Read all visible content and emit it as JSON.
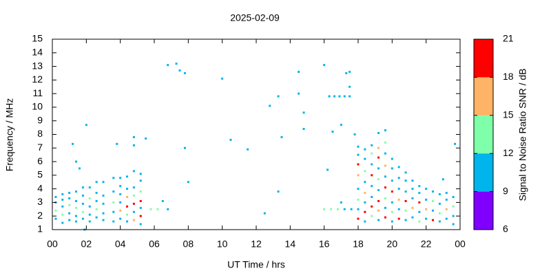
{
  "chart_data": {
    "type": "scatter",
    "title": "2025-02-09",
    "xlabel": "UT Time / hrs",
    "ylabel": "Frequency / MHz",
    "xlim": [
      0,
      24
    ],
    "xticks": [
      {
        "value": 0,
        "label": "00"
      },
      {
        "value": 2,
        "label": "02"
      },
      {
        "value": 4,
        "label": "04"
      },
      {
        "value": 6,
        "label": "06"
      },
      {
        "value": 8,
        "label": "08"
      },
      10,
      12,
      14,
      16,
      18,
      20,
      22,
      {
        "value": 24,
        "label": "00"
      }
    ],
    "ylim": [
      1,
      15
    ],
    "yticks": [
      1,
      2,
      3,
      4,
      5,
      6,
      7,
      8,
      9,
      10,
      11,
      12,
      13,
      14,
      15
    ],
    "colorbar": {
      "label": "Signal to Noise Ratio SNR / dB",
      "zlim": [
        6,
        21
      ],
      "zticks": [
        6,
        9,
        12,
        15,
        18,
        21
      ],
      "colors": [
        "#8000ff",
        "#00b4ec",
        "#80ffaa",
        "#ffb366",
        "#ff0000"
      ]
    },
    "points": [
      [
        0.2,
        1.8,
        10
      ],
      [
        0.2,
        2.4,
        13
      ],
      [
        0.2,
        3.0,
        10
      ],
      [
        0.2,
        3.4,
        10
      ],
      [
        0.6,
        1.5,
        10
      ],
      [
        0.6,
        2.1,
        13
      ],
      [
        0.6,
        2.7,
        10
      ],
      [
        0.6,
        3.2,
        11
      ],
      [
        0.6,
        3.6,
        10
      ],
      [
        1.0,
        1.7,
        10
      ],
      [
        1.0,
        2.2,
        11
      ],
      [
        1.0,
        2.8,
        14
      ],
      [
        1.0,
        3.3,
        10
      ],
      [
        1.0,
        3.7,
        10
      ],
      [
        1.4,
        1.6,
        10
      ],
      [
        1.4,
        2.0,
        10
      ],
      [
        1.4,
        2.6,
        13
      ],
      [
        1.4,
        3.1,
        10
      ],
      [
        1.4,
        3.8,
        10
      ],
      [
        1.4,
        6.0,
        10
      ],
      [
        1.8,
        1.8,
        10
      ],
      [
        1.8,
        2.3,
        14
      ],
      [
        1.8,
        2.9,
        10
      ],
      [
        1.8,
        3.5,
        10
      ],
      [
        1.8,
        4.1,
        10
      ],
      [
        2.2,
        1.6,
        11
      ],
      [
        2.2,
        2.1,
        10
      ],
      [
        2.2,
        2.7,
        10
      ],
      [
        2.2,
        3.3,
        13
      ],
      [
        2.2,
        4.1,
        10
      ],
      [
        2.6,
        1.9,
        10
      ],
      [
        2.6,
        2.5,
        13
      ],
      [
        2.6,
        3.1,
        10
      ],
      [
        2.6,
        3.7,
        10
      ],
      [
        2.6,
        4.5,
        10
      ],
      [
        3.0,
        1.7,
        10
      ],
      [
        3.0,
        2.2,
        10
      ],
      [
        3.0,
        2.9,
        11
      ],
      [
        3.0,
        3.5,
        10
      ],
      [
        3.0,
        4.5,
        10
      ],
      [
        3.6,
        1.6,
        10
      ],
      [
        3.6,
        2.3,
        10
      ],
      [
        3.6,
        3.0,
        13
      ],
      [
        3.6,
        3.8,
        10
      ],
      [
        3.6,
        4.8,
        10
      ],
      [
        4.0,
        1.8,
        10
      ],
      [
        4.0,
        2.4,
        16
      ],
      [
        4.0,
        3.0,
        10
      ],
      [
        4.0,
        3.6,
        10
      ],
      [
        4.0,
        4.2,
        11
      ],
      [
        4.0,
        4.8,
        10
      ],
      [
        4.4,
        1.6,
        10
      ],
      [
        4.4,
        2.1,
        13
      ],
      [
        4.4,
        2.7,
        19
      ],
      [
        4.4,
        3.4,
        16
      ],
      [
        4.4,
        4.0,
        10
      ],
      [
        4.4,
        4.9,
        10
      ],
      [
        4.8,
        1.7,
        17
      ],
      [
        4.8,
        2.3,
        10
      ],
      [
        4.8,
        2.9,
        19
      ],
      [
        4.8,
        3.5,
        14
      ],
      [
        4.8,
        4.1,
        10
      ],
      [
        4.8,
        5.3,
        10
      ],
      [
        5.2,
        1.4,
        10
      ],
      [
        5.2,
        2.0,
        19
      ],
      [
        5.2,
        2.6,
        10
      ],
      [
        5.2,
        3.1,
        19
      ],
      [
        5.2,
        3.8,
        13
      ],
      [
        5.2,
        4.6,
        10
      ],
      [
        5.2,
        5.1,
        10
      ],
      [
        1.2,
        7.3,
        10
      ],
      [
        1.6,
        5.5,
        10
      ],
      [
        2.0,
        8.7,
        10
      ],
      [
        1.9,
        1.0,
        10
      ],
      [
        3.8,
        7.3,
        10
      ],
      [
        4.8,
        7.8,
        10
      ],
      [
        4.8,
        7.2,
        10
      ],
      [
        5.5,
        7.7,
        10
      ],
      [
        5.8,
        2.5,
        13
      ],
      [
        6.2,
        2.5,
        13
      ],
      [
        6.5,
        3.1,
        10
      ],
      [
        6.8,
        2.5,
        10
      ],
      [
        6.8,
        13.1,
        10
      ],
      [
        7.3,
        13.2,
        10
      ],
      [
        7.5,
        12.7,
        10
      ],
      [
        7.8,
        12.5,
        10
      ],
      [
        7.8,
        7.0,
        10
      ],
      [
        8.0,
        4.5,
        10
      ],
      [
        10.0,
        12.1,
        10
      ],
      [
        10.5,
        7.6,
        10
      ],
      [
        11.5,
        6.9,
        10
      ],
      [
        12.5,
        2.2,
        10
      ],
      [
        12.8,
        10.1,
        10
      ],
      [
        13.3,
        10.8,
        10
      ],
      [
        13.3,
        3.8,
        10
      ],
      [
        13.5,
        7.8,
        10
      ],
      [
        14.5,
        12.6,
        10
      ],
      [
        14.5,
        11.0,
        10
      ],
      [
        14.8,
        9.6,
        10
      ],
      [
        14.8,
        8.4,
        10
      ],
      [
        16.0,
        13.1,
        10
      ],
      [
        16.2,
        5.4,
        10
      ],
      [
        16.3,
        10.8,
        10
      ],
      [
        16.6,
        10.8,
        10
      ],
      [
        16.9,
        10.8,
        10
      ],
      [
        17.2,
        10.8,
        10
      ],
      [
        17.5,
        10.8,
        10
      ],
      [
        17.5,
        11.5,
        10
      ],
      [
        17.3,
        12.5,
        10
      ],
      [
        17.5,
        12.6,
        10
      ],
      [
        16.5,
        8.2,
        10
      ],
      [
        17.0,
        8.7,
        10
      ],
      [
        17.0,
        3.0,
        10
      ],
      [
        16.0,
        2.5,
        13
      ],
      [
        16.4,
        2.5,
        13
      ],
      [
        16.8,
        2.5,
        13
      ],
      [
        17.2,
        2.5,
        10
      ],
      [
        17.6,
        2.5,
        10
      ],
      [
        17.8,
        8.0,
        10
      ],
      [
        23.7,
        7.3,
        10
      ],
      [
        23.0,
        4.7,
        10
      ],
      [
        18.0,
        1.8,
        19
      ],
      [
        18.0,
        2.5,
        10
      ],
      [
        18.0,
        3.2,
        13
      ],
      [
        18.0,
        4.0,
        10
      ],
      [
        18.0,
        5.0,
        16
      ],
      [
        18.0,
        5.8,
        19
      ],
      [
        18.0,
        6.5,
        10
      ],
      [
        18.0,
        7.1,
        10
      ],
      [
        18.4,
        1.6,
        10
      ],
      [
        18.4,
        2.3,
        19
      ],
      [
        18.4,
        3.0,
        10
      ],
      [
        18.4,
        3.7,
        16
      ],
      [
        18.4,
        4.5,
        10
      ],
      [
        18.4,
        5.3,
        13
      ],
      [
        18.4,
        6.2,
        10
      ],
      [
        18.4,
        6.9,
        10
      ],
      [
        18.8,
        2.0,
        13
      ],
      [
        18.8,
        2.7,
        19
      ],
      [
        18.8,
        3.4,
        10
      ],
      [
        18.8,
        4.2,
        10
      ],
      [
        18.8,
        5.0,
        19
      ],
      [
        18.8,
        5.8,
        10
      ],
      [
        18.8,
        6.6,
        13
      ],
      [
        18.8,
        7.2,
        10
      ],
      [
        19.2,
        1.7,
        10
      ],
      [
        19.2,
        2.4,
        16
      ],
      [
        19.2,
        3.1,
        19
      ],
      [
        19.2,
        3.9,
        10
      ],
      [
        19.2,
        4.7,
        13
      ],
      [
        19.2,
        5.5,
        10
      ],
      [
        19.2,
        6.3,
        19
      ],
      [
        19.2,
        7.0,
        16
      ],
      [
        19.2,
        8.1,
        10
      ],
      [
        19.6,
        1.9,
        19
      ],
      [
        19.6,
        2.6,
        10
      ],
      [
        19.6,
        3.3,
        13
      ],
      [
        19.6,
        4.1,
        19
      ],
      [
        19.6,
        4.9,
        10
      ],
      [
        19.6,
        5.7,
        16
      ],
      [
        19.6,
        6.6,
        10
      ],
      [
        19.6,
        7.4,
        13
      ],
      [
        19.6,
        8.3,
        10
      ],
      [
        20.0,
        1.6,
        10
      ],
      [
        20.0,
        2.3,
        13
      ],
      [
        20.0,
        3.0,
        10
      ],
      [
        20.0,
        3.8,
        19
      ],
      [
        20.0,
        4.6,
        10
      ],
      [
        20.0,
        5.5,
        10
      ],
      [
        20.0,
        6.2,
        10
      ],
      [
        20.4,
        1.8,
        19
      ],
      [
        20.4,
        2.5,
        10
      ],
      [
        20.4,
        3.2,
        16
      ],
      [
        20.4,
        4.0,
        10
      ],
      [
        20.4,
        4.8,
        10
      ],
      [
        20.4,
        5.6,
        10
      ],
      [
        20.8,
        1.7,
        10
      ],
      [
        20.8,
        2.4,
        13
      ],
      [
        20.8,
        3.1,
        19
      ],
      [
        20.8,
        3.8,
        10
      ],
      [
        20.8,
        4.6,
        10
      ],
      [
        20.8,
        5.2,
        10
      ],
      [
        21.2,
        1.9,
        10
      ],
      [
        21.2,
        2.6,
        16
      ],
      [
        21.2,
        3.3,
        10
      ],
      [
        21.2,
        4.0,
        10
      ],
      [
        21.2,
        4.6,
        10
      ],
      [
        21.6,
        1.6,
        13
      ],
      [
        21.6,
        2.3,
        10
      ],
      [
        21.6,
        3.0,
        19
      ],
      [
        21.6,
        3.7,
        10
      ],
      [
        21.6,
        4.2,
        10
      ],
      [
        22.0,
        1.8,
        10
      ],
      [
        22.0,
        2.5,
        16
      ],
      [
        22.0,
        3.2,
        10
      ],
      [
        22.0,
        4.0,
        10
      ],
      [
        22.4,
        1.7,
        19
      ],
      [
        22.4,
        2.4,
        10
      ],
      [
        22.4,
        3.1,
        13
      ],
      [
        22.4,
        3.8,
        10
      ],
      [
        22.8,
        1.6,
        10
      ],
      [
        22.8,
        2.2,
        13
      ],
      [
        22.8,
        2.9,
        10
      ],
      [
        22.8,
        3.6,
        10
      ],
      [
        23.2,
        1.8,
        10
      ],
      [
        23.2,
        2.5,
        16
      ],
      [
        23.2,
        3.2,
        10
      ],
      [
        23.2,
        3.7,
        10
      ],
      [
        23.6,
        1.4,
        10
      ],
      [
        23.6,
        2.0,
        10
      ],
      [
        23.6,
        2.7,
        13
      ],
      [
        23.6,
        3.4,
        10
      ]
    ]
  }
}
